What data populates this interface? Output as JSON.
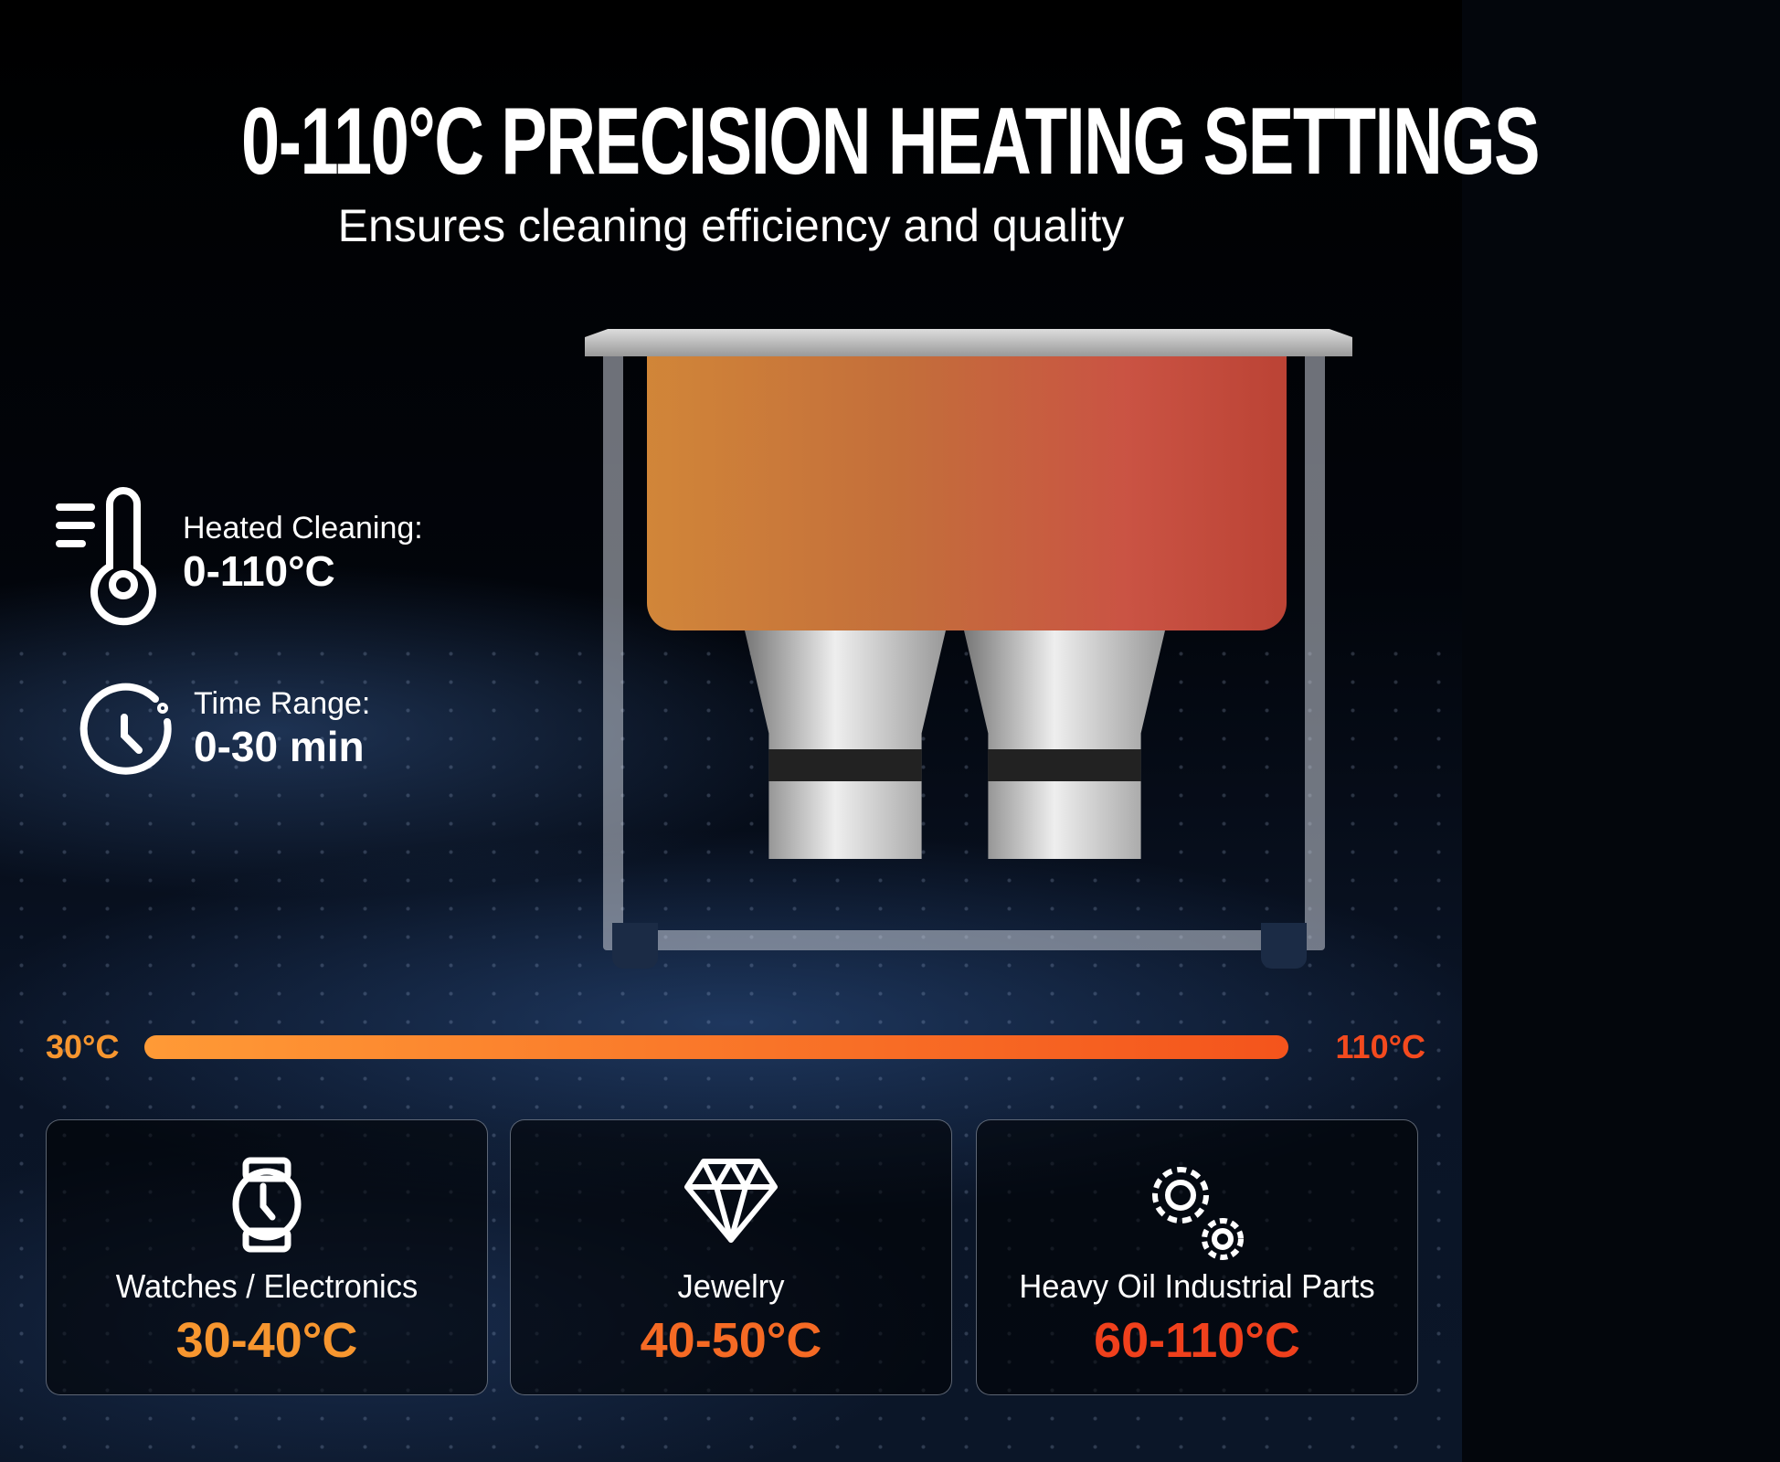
{
  "header": {
    "title": "0-110°C PRECISION HEATING SETTINGS",
    "subtitle": "Ensures cleaning efficiency and quality"
  },
  "features": [
    {
      "icon": "thermometer-icon",
      "label": "Heated Cleaning:",
      "value": "0-110°C"
    },
    {
      "icon": "clock-icon",
      "label": "Time Range:",
      "value": "0-30 min"
    }
  ],
  "scale": {
    "min_label": "30°C",
    "max_label": "110°C",
    "colors": [
      "#ff9a36",
      "#f4541c"
    ]
  },
  "cards": [
    {
      "icon": "watch-icon",
      "name": "Watches / Electronics",
      "range": "30-40°C",
      "color": "#f7962f"
    },
    {
      "icon": "diamond-icon",
      "name": "Jewelry",
      "range": "40-50°C",
      "color": "#f56a24"
    },
    {
      "icon": "gears-icon",
      "name": "Heavy Oil Industrial Parts",
      "range": "60-110°C",
      "color": "#f0401c"
    }
  ]
}
